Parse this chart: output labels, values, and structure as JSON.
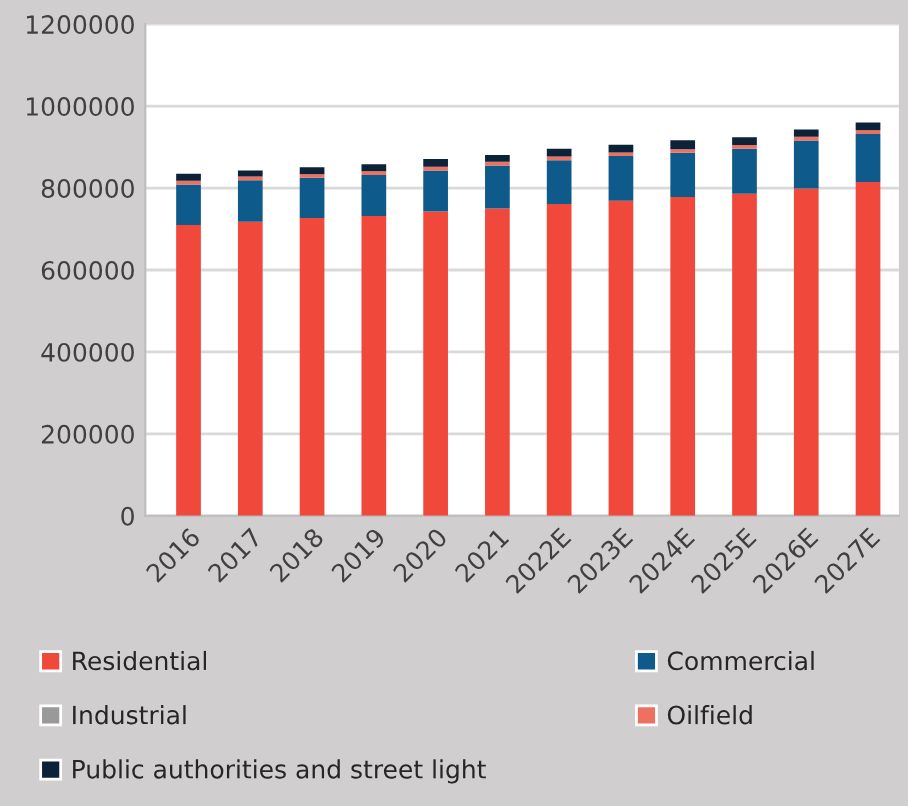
{
  "chart_data": {
    "type": "bar",
    "stacked": true,
    "categories": [
      "2016",
      "2017",
      "2018",
      "2019",
      "2020",
      "2021",
      "2022E",
      "2023E",
      "2024E",
      "2025E",
      "2026E",
      "2027E"
    ],
    "series": [
      {
        "name": "Residential",
        "color": "#f0483a",
        "values": [
          710000,
          718000,
          727000,
          732000,
          743000,
          750000,
          761000,
          769000,
          778000,
          786000,
          799000,
          815000
        ]
      },
      {
        "name": "Commercial",
        "color": "#0e5a8a",
        "values": [
          99000,
          101000,
          98000,
          100000,
          100000,
          105000,
          107000,
          109000,
          108000,
          110000,
          117000,
          117000
        ]
      },
      {
        "name": "Industrial",
        "color": "#999999",
        "values": [
          null,
          null,
          null,
          null,
          null,
          null,
          null,
          null,
          null,
          null,
          null,
          null
        ]
      },
      {
        "name": "Oilfield",
        "color": "#f07060",
        "values": [
          9000,
          9000,
          9000,
          9000,
          9000,
          9000,
          9000,
          9000,
          9000,
          9000,
          9000,
          9000
        ]
      },
      {
        "name": "Public authorities and street light",
        "color": "#0c2238",
        "values": [
          17000,
          15000,
          17000,
          17000,
          19000,
          17000,
          19000,
          19000,
          22000,
          19000,
          18000,
          19000
        ]
      }
    ],
    "ylim": [
      0,
      1200000
    ],
    "yticks": [
      0,
      200000,
      400000,
      600000,
      800000,
      1000000,
      1200000
    ],
    "grid": "y",
    "legend": "bottom"
  }
}
